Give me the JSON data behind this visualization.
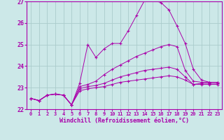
{
  "xlabel": "Windchill (Refroidissement éolien,°C)",
  "bg_color": "#cce8e8",
  "grid_color": "#aacccc",
  "line_color": "#aa00aa",
  "spine_color": "#aa00aa",
  "xlim": [
    -0.5,
    23.5
  ],
  "ylim": [
    22.0,
    27.0
  ],
  "xticks": [
    0,
    1,
    2,
    3,
    4,
    5,
    6,
    7,
    8,
    9,
    10,
    11,
    12,
    13,
    14,
    15,
    16,
    17,
    18,
    19,
    20,
    21,
    22,
    23
  ],
  "yticks": [
    22,
    23,
    24,
    25,
    26,
    27
  ],
  "curves": [
    {
      "comment": "top curve - peaks at 27",
      "x": [
        0,
        1,
        2,
        3,
        4,
        5,
        6,
        7,
        8,
        9,
        10,
        11,
        12,
        13,
        14,
        15,
        16,
        17,
        18,
        19,
        20,
        21,
        22,
        23
      ],
      "y": [
        22.5,
        22.4,
        22.65,
        22.7,
        22.65,
        22.2,
        23.2,
        25.0,
        24.4,
        24.8,
        25.05,
        25.05,
        25.65,
        26.35,
        27.05,
        27.05,
        26.95,
        26.6,
        25.85,
        25.05,
        23.85,
        23.35,
        23.25,
        23.25
      ]
    },
    {
      "comment": "second curve - peaks around 25",
      "x": [
        0,
        1,
        2,
        3,
        4,
        5,
        6,
        7,
        8,
        9,
        10,
        11,
        12,
        13,
        14,
        15,
        16,
        17,
        18,
        19,
        20,
        21,
        22,
        23
      ],
      "y": [
        22.5,
        22.4,
        22.65,
        22.7,
        22.65,
        22.2,
        23.05,
        23.15,
        23.3,
        23.6,
        23.85,
        24.05,
        24.25,
        24.45,
        24.6,
        24.75,
        24.9,
        25.0,
        24.9,
        23.8,
        23.3,
        23.25,
        23.25,
        23.25
      ]
    },
    {
      "comment": "third curve - peaks ~23.85",
      "x": [
        0,
        1,
        2,
        3,
        4,
        5,
        6,
        7,
        8,
        9,
        10,
        11,
        12,
        13,
        14,
        15,
        16,
        17,
        18,
        19,
        20,
        21,
        22,
        23
      ],
      "y": [
        22.5,
        22.4,
        22.65,
        22.7,
        22.65,
        22.2,
        22.95,
        23.05,
        23.1,
        23.2,
        23.35,
        23.5,
        23.6,
        23.7,
        23.8,
        23.85,
        23.9,
        23.95,
        23.85,
        23.5,
        23.15,
        23.2,
        23.2,
        23.2
      ]
    },
    {
      "comment": "fourth curve - flattest",
      "x": [
        0,
        1,
        2,
        3,
        4,
        5,
        6,
        7,
        8,
        9,
        10,
        11,
        12,
        13,
        14,
        15,
        16,
        17,
        18,
        19,
        20,
        21,
        22,
        23
      ],
      "y": [
        22.5,
        22.4,
        22.65,
        22.7,
        22.65,
        22.2,
        22.85,
        22.95,
        23.0,
        23.05,
        23.15,
        23.25,
        23.3,
        23.35,
        23.4,
        23.45,
        23.5,
        23.55,
        23.5,
        23.35,
        23.15,
        23.15,
        23.15,
        23.15
      ]
    }
  ]
}
